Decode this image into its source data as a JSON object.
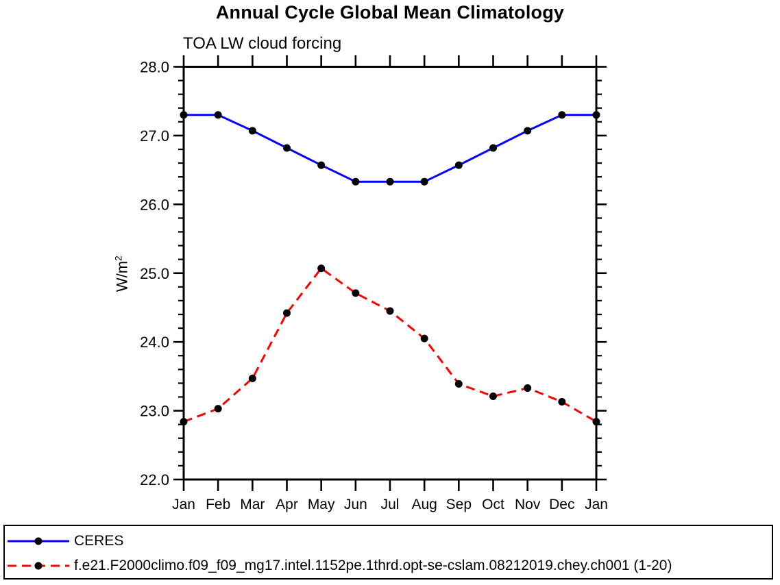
{
  "chart_data": {
    "type": "line",
    "title": "Annual Cycle Global Mean Climatology",
    "subtitle": "TOA LW cloud forcing",
    "ylabel": "W/m²",
    "xlabel": "",
    "x_categories": [
      "Jan",
      "Feb",
      "Mar",
      "Apr",
      "May",
      "Jun",
      "Jul",
      "Aug",
      "Sep",
      "Oct",
      "Nov",
      "Dec",
      "Jan"
    ],
    "ylim": [
      22.0,
      28.0
    ],
    "y_major_ticks": [
      22.0,
      23.0,
      24.0,
      25.0,
      26.0,
      27.0,
      28.0
    ],
    "y_minor_step": 0.2,
    "grid": false,
    "legend_position": "bottom-box",
    "series": [
      {
        "name": "CERES",
        "color": "#0000ff",
        "line_style": "solid",
        "marker": "filled-circle",
        "marker_color": "#000000",
        "values": [
          27.3,
          27.3,
          27.07,
          26.82,
          26.57,
          26.33,
          26.33,
          26.33,
          26.57,
          26.82,
          27.07,
          27.3,
          27.3
        ]
      },
      {
        "name": "f.e21.F2000climo.f09_f09_mg17.intel.1152pe.1thrd.opt-se-cslam.08212019.chey.ch001 (1-20)",
        "color": "#ff0000",
        "line_style": "dashed",
        "marker": "filled-circle",
        "marker_color": "#000000",
        "values": [
          22.84,
          23.03,
          23.47,
          24.42,
          25.07,
          24.71,
          24.45,
          24.05,
          23.39,
          23.21,
          23.33,
          23.13,
          22.84
        ]
      }
    ]
  },
  "ui": {
    "ylabel_base": "W/m",
    "ylabel_exp": "2"
  }
}
